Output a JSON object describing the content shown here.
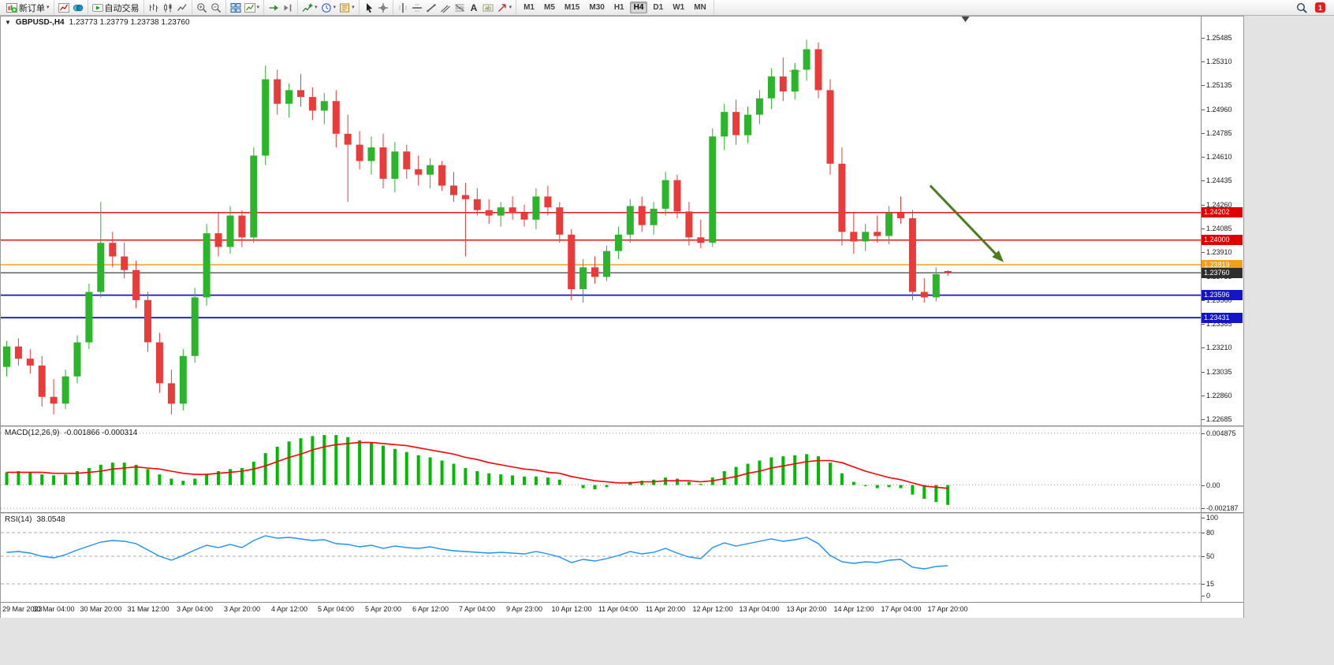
{
  "toolbar": {
    "active_timeframe": "H4",
    "groups": [
      {
        "items": [
          {
            "icon": "new-order",
            "label": "新订单",
            "caret": true,
            "name": "new-order-button"
          }
        ]
      },
      {
        "items": [
          {
            "icon": "chart-window",
            "name": "charts-button"
          },
          {
            "icon": "profile",
            "name": "profiles-button"
          }
        ]
      },
      {
        "items": [
          {
            "icon": "autotrading",
            "label": "自动交易",
            "name": "autotrading-button"
          }
        ]
      },
      {
        "items": [
          {
            "icon": "bar-chart",
            "name": "bar-chart-button"
          },
          {
            "icon": "candle-chart",
            "name": "candlestick-chart-button"
          },
          {
            "icon": "line-chart",
            "name": "line-chart-button"
          }
        ]
      },
      {
        "items": [
          {
            "icon": "zoom-in",
            "name": "zoom-in-button"
          },
          {
            "icon": "zoom-out",
            "name": "zoom-out-button"
          }
        ]
      },
      {
        "items": [
          {
            "icon": "tile-windows",
            "name": "tile-windows-button"
          },
          {
            "icon": "new-chart",
            "caret": true,
            "name": "new-chart-button"
          }
        ]
      },
      {
        "items": [
          {
            "icon": "auto-scroll",
            "name": "auto-scroll-button"
          },
          {
            "icon": "chart-shift",
            "name": "chart-shift-button"
          }
        ]
      },
      {
        "items": [
          {
            "icon": "indicators",
            "caret": true,
            "name": "indicators-button"
          },
          {
            "icon": "periods",
            "caret": true,
            "name": "periods-button"
          },
          {
            "icon": "templates",
            "caret": true,
            "name": "templates-button"
          }
        ]
      },
      {
        "items": [
          {
            "icon": "cursor",
            "name": "cursor-button"
          },
          {
            "icon": "crosshair",
            "name": "crosshair-button"
          }
        ]
      },
      {
        "items": [
          {
            "icon": "vertical-line",
            "name": "vertical-line-button"
          },
          {
            "icon": "horizontal-line",
            "name": "horizontal-line-button"
          },
          {
            "icon": "trendline",
            "name": "trendline-button"
          },
          {
            "icon": "channel",
            "name": "channel-button"
          },
          {
            "icon": "fibonacci",
            "name": "fibonacci-button"
          },
          {
            "icon": "text",
            "name": "text-button"
          },
          {
            "icon": "text-label",
            "name": "text-label-button"
          },
          {
            "icon": "arrows",
            "caret": true,
            "name": "arrows-button"
          }
        ]
      },
      {
        "items": [
          {
            "tf": "M1"
          },
          {
            "tf": "M5"
          },
          {
            "tf": "M15"
          },
          {
            "tf": "M30"
          },
          {
            "tf": "H1"
          },
          {
            "tf": "H4"
          },
          {
            "tf": "D1"
          },
          {
            "tf": "W1"
          },
          {
            "tf": "MN"
          }
        ]
      }
    ],
    "right": {
      "badge": "1"
    }
  },
  "chart": {
    "symbol_period": "GBPUSD-,H4",
    "ohlc_readout": "1.23773 1.23779 1.23738 1.23760"
  },
  "chart_data": {
    "type": "candlestick",
    "symbol": "GBPUSD-",
    "timeframe": "H4",
    "ohlc": {
      "open": 1.23773,
      "high": 1.23779,
      "low": 1.23738,
      "close": 1.2376
    },
    "price_range": [
      1.2264,
      1.2564
    ],
    "right_padding_slots": 21,
    "label_step": 4,
    "colors": {
      "bull": "#2ab52a",
      "bear": "#ea3b3b",
      "background": "#ffffff"
    },
    "price_ticks": [
      "1.25485",
      "1.25310",
      "1.25135",
      "1.24960",
      "1.24785",
      "1.24610",
      "1.24435",
      "1.24260",
      "1.24085",
      "1.23910",
      "1.23735",
      "1.23560",
      "1.23385",
      "1.23210",
      "1.23035",
      "1.22860",
      "1.22685"
    ],
    "hlines": [
      {
        "price": 1.24202,
        "tag": "1.24202",
        "color": "#e00000",
        "width": 1.3
      },
      {
        "price": 1.24,
        "tag": "1.24000",
        "color": "#e00000",
        "width": 1.3
      },
      {
        "price": 1.23819,
        "tag": "1.23819",
        "color": "#f0a01e",
        "width": 1.6
      },
      {
        "price": 1.2376,
        "tag": "1.23760",
        "color": "#2e2e2e",
        "width": 1.1
      },
      {
        "price": 1.23596,
        "tag": "1.23596",
        "color": "#1414c8",
        "width": 1.8
      },
      {
        "price": 1.23431,
        "tag": "1.23431",
        "color": "#1414c8",
        "width": 1.8
      }
    ],
    "arrow": {
      "from_slot": 78.5,
      "from_price": 1.244,
      "to_slot": 84.5,
      "to_price": 1.2386,
      "color": "#4a7d1e",
      "width": 3
    },
    "marker": {
      "slot": 67,
      "price": 1.2524,
      "color": "#3aa32a"
    },
    "time_labels": [
      "29 Mar 2023",
      "30 Mar 04:00",
      "30 Mar 20:00",
      "31 Mar 12:00",
      "3 Apr 04:00",
      "3 Apr 20:00",
      "4 Apr 12:00",
      "5 Apr 04:00",
      "5 Apr 20:00",
      "6 Apr 12:00",
      "7 Apr 04:00",
      "9 Apr 23:00",
      "10 Apr 12:00",
      "11 Apr 04:00",
      "11 Apr 20:00",
      "12 Apr 12:00",
      "13 Apr 04:00",
      "13 Apr 20:00",
      "14 Apr 12:00",
      "17 Apr 04:00",
      "17 Apr 20:00"
    ],
    "candles": [
      [
        1.2307,
        1.2326,
        1.23,
        1.2322
      ],
      [
        1.2322,
        1.2328,
        1.2308,
        1.2313
      ],
      [
        1.2313,
        1.232,
        1.2302,
        1.2308
      ],
      [
        1.2308,
        1.2315,
        1.2278,
        1.2285
      ],
      [
        1.2285,
        1.2298,
        1.2272,
        1.228
      ],
      [
        1.228,
        1.2305,
        1.2276,
        1.23
      ],
      [
        1.23,
        1.233,
        1.2295,
        1.2325
      ],
      [
        1.2325,
        1.2368,
        1.232,
        1.2362
      ],
      [
        1.2362,
        1.2428,
        1.2358,
        1.2398
      ],
      [
        1.2398,
        1.2406,
        1.238,
        1.2388
      ],
      [
        1.2388,
        1.2398,
        1.2372,
        1.2378
      ],
      [
        1.2378,
        1.2385,
        1.235,
        1.2356
      ],
      [
        1.2356,
        1.2362,
        1.2318,
        1.2325
      ],
      [
        1.2325,
        1.2332,
        1.2288,
        1.2295
      ],
      [
        1.2295,
        1.2305,
        1.2272,
        1.228
      ],
      [
        1.228,
        1.232,
        1.2275,
        1.2315
      ],
      [
        1.2315,
        1.2365,
        1.231,
        1.2358
      ],
      [
        1.2358,
        1.2412,
        1.2352,
        1.2405
      ],
      [
        1.2405,
        1.242,
        1.2388,
        1.2395
      ],
      [
        1.2395,
        1.2425,
        1.239,
        1.2418
      ],
      [
        1.2418,
        1.2422,
        1.2395,
        1.2402
      ],
      [
        1.2402,
        1.2468,
        1.2398,
        1.2462
      ],
      [
        1.2462,
        1.2528,
        1.2455,
        1.2518
      ],
      [
        1.2518,
        1.2525,
        1.2492,
        1.25
      ],
      [
        1.25,
        1.2515,
        1.249,
        1.251
      ],
      [
        1.251,
        1.2522,
        1.2498,
        1.2505
      ],
      [
        1.2505,
        1.2512,
        1.2488,
        1.2495
      ],
      [
        1.2495,
        1.2508,
        1.2485,
        1.2502
      ],
      [
        1.2502,
        1.251,
        1.2468,
        1.2478
      ],
      [
        1.2478,
        1.2492,
        1.2428,
        1.247
      ],
      [
        1.247,
        1.248,
        1.2452,
        1.2458
      ],
      [
        1.2458,
        1.2476,
        1.2448,
        1.2468
      ],
      [
        1.2468,
        1.2478,
        1.2438,
        1.2445
      ],
      [
        1.2445,
        1.2472,
        1.2435,
        1.2465
      ],
      [
        1.2465,
        1.247,
        1.2445,
        1.2452
      ],
      [
        1.2452,
        1.2462,
        1.244,
        1.2448
      ],
      [
        1.2448,
        1.246,
        1.2438,
        1.2455
      ],
      [
        1.2455,
        1.2458,
        1.2436,
        1.244
      ],
      [
        1.244,
        1.245,
        1.2428,
        1.2433
      ],
      [
        1.2433,
        1.2442,
        1.2388,
        1.243
      ],
      [
        1.243,
        1.2438,
        1.2418,
        1.2422
      ],
      [
        1.2422,
        1.243,
        1.2412,
        1.2418
      ],
      [
        1.2418,
        1.2428,
        1.241,
        1.2424
      ],
      [
        1.2424,
        1.2432,
        1.2415,
        1.242
      ],
      [
        1.242,
        1.2426,
        1.241,
        1.2415
      ],
      [
        1.2415,
        1.2438,
        1.2408,
        1.2432
      ],
      [
        1.2432,
        1.244,
        1.2418,
        1.2424
      ],
      [
        1.2424,
        1.2428,
        1.2398,
        1.2404
      ],
      [
        1.2404,
        1.2408,
        1.2356,
        1.2364
      ],
      [
        1.2364,
        1.2386,
        1.2354,
        1.238
      ],
      [
        1.238,
        1.2388,
        1.2368,
        1.2373
      ],
      [
        1.2373,
        1.2396,
        1.237,
        1.2392
      ],
      [
        1.2392,
        1.241,
        1.2386,
        1.2404
      ],
      [
        1.2404,
        1.243,
        1.2398,
        1.2425
      ],
      [
        1.2425,
        1.2432,
        1.2406,
        1.2411
      ],
      [
        1.2411,
        1.2428,
        1.2404,
        1.2423
      ],
      [
        1.2423,
        1.245,
        1.2418,
        1.2444
      ],
      [
        1.2444,
        1.2448,
        1.2416,
        1.2421
      ],
      [
        1.2421,
        1.2428,
        1.2396,
        1.2402
      ],
      [
        1.2402,
        1.2415,
        1.2394,
        1.2398
      ],
      [
        1.2398,
        1.2482,
        1.2395,
        1.2476
      ],
      [
        1.2476,
        1.25,
        1.2466,
        1.2494
      ],
      [
        1.2494,
        1.2503,
        1.247,
        1.2477
      ],
      [
        1.2477,
        1.2498,
        1.2471,
        1.2492
      ],
      [
        1.2492,
        1.251,
        1.2485,
        1.2504
      ],
      [
        1.2504,
        1.2526,
        1.2496,
        1.252
      ],
      [
        1.252,
        1.2534,
        1.2502,
        1.2509
      ],
      [
        1.2509,
        1.253,
        1.2503,
        1.2525
      ],
      [
        1.2525,
        1.2547,
        1.2517,
        1.254
      ],
      [
        1.254,
        1.2545,
        1.2504,
        1.251
      ],
      [
        1.251,
        1.2518,
        1.2448,
        1.2456
      ],
      [
        1.2456,
        1.2468,
        1.2396,
        1.2406
      ],
      [
        1.2406,
        1.242,
        1.239,
        1.2399
      ],
      [
        1.2399,
        1.2412,
        1.2392,
        1.2406
      ],
      [
        1.2406,
        1.2418,
        1.2398,
        1.2403
      ],
      [
        1.2403,
        1.2425,
        1.2397,
        1.242
      ],
      [
        1.242,
        1.2432,
        1.2412,
        1.2416
      ],
      [
        1.2416,
        1.2422,
        1.2356,
        1.2362
      ],
      [
        1.2362,
        1.2372,
        1.2354,
        1.2358
      ],
      [
        1.2358,
        1.238,
        1.2355,
        1.2375
      ],
      [
        1.23773,
        1.23779,
        1.23738,
        1.2376
      ]
    ],
    "macd": {
      "label": "MACD(12,26,9)",
      "values_label": "-0.001866 -0.000314",
      "main_value": -0.001866,
      "signal_value": -0.000314,
      "range": [
        -0.00255,
        0.00545
      ],
      "hist_color": "#00bb00",
      "signal_color": "#ff0000",
      "ticks": [
        {
          "v": 0.004875,
          "text": "0.004875"
        },
        {
          "v": 0,
          "text": "0.00"
        },
        {
          "v": -0.002187,
          "text": "-0.002187"
        }
      ],
      "hist": [
        0.0012,
        0.0013,
        0.0012,
        0.001,
        0.0009,
        0.001,
        0.0013,
        0.0016,
        0.0019,
        0.0021,
        0.0021,
        0.0019,
        0.0015,
        0.001,
        0.0006,
        0.0004,
        0.0006,
        0.001,
        0.0013,
        0.0015,
        0.0016,
        0.0022,
        0.003,
        0.0036,
        0.0041,
        0.0044,
        0.0046,
        0.0047,
        0.0047,
        0.0045,
        0.0042,
        0.004,
        0.0037,
        0.0034,
        0.0031,
        0.0028,
        0.0026,
        0.0023,
        0.002,
        0.0016,
        0.0013,
        0.0011,
        0.001,
        0.0009,
        0.0008,
        0.0008,
        0.0007,
        0.0005,
        0.0,
        -0.0003,
        -0.0004,
        -0.0002,
        0.0,
        0.0003,
        0.0004,
        0.0005,
        0.0007,
        0.0006,
        0.0003,
        0.0001,
        0.0007,
        0.0013,
        0.0017,
        0.002,
        0.0023,
        0.0026,
        0.0027,
        0.0028,
        0.0029,
        0.0027,
        0.0021,
        0.0011,
        0.0003,
        -0.0001,
        -0.0003,
        -0.0002,
        -0.0003,
        -0.0009,
        -0.0013,
        -0.0016,
        -0.001866
      ],
      "signal": [
        0.0012,
        0.0012,
        0.0012,
        0.0012,
        0.0011,
        0.0011,
        0.0011,
        0.0012,
        0.0013,
        0.0015,
        0.0016,
        0.0017,
        0.0016,
        0.0015,
        0.0013,
        0.0011,
        0.001,
        0.001,
        0.0011,
        0.0012,
        0.0013,
        0.0015,
        0.0018,
        0.0022,
        0.0026,
        0.0029,
        0.0033,
        0.0036,
        0.0038,
        0.0039,
        0.004,
        0.004,
        0.0039,
        0.0038,
        0.0037,
        0.0035,
        0.0033,
        0.0031,
        0.0029,
        0.0026,
        0.0024,
        0.0021,
        0.0019,
        0.0017,
        0.0015,
        0.0014,
        0.0012,
        0.0011,
        0.0008,
        0.0006,
        0.0004,
        0.0003,
        0.0002,
        0.0002,
        0.0003,
        0.0003,
        0.0004,
        0.0004,
        0.0004,
        0.0003,
        0.0004,
        0.0006,
        0.0008,
        0.0011,
        0.0013,
        0.0016,
        0.0018,
        0.002,
        0.0022,
        0.0023,
        0.0023,
        0.0021,
        0.0017,
        0.0013,
        0.001,
        0.0007,
        0.0005,
        0.0002,
        -0.0001,
        -0.0002,
        -0.000314
      ]
    },
    "rsi": {
      "label": "RSI(14)",
      "value_label": "38.0548",
      "current_value": 38.0548,
      "range": [
        0,
        100
      ],
      "color": "#1e90ff",
      "levels": [
        80,
        50,
        15
      ],
      "ticks": [
        {
          "v": 100,
          "text": "100"
        },
        {
          "v": 80,
          "text": "80"
        },
        {
          "v": 50,
          "text": "50"
        },
        {
          "v": 15,
          "text": "15"
        },
        {
          "v": 0,
          "text": "0"
        }
      ],
      "values": [
        55,
        56,
        54,
        50,
        48,
        52,
        58,
        63,
        68,
        70,
        69,
        66,
        58,
        50,
        45,
        51,
        58,
        64,
        61,
        65,
        61,
        70,
        76,
        73,
        74,
        72,
        70,
        71,
        66,
        65,
        62,
        64,
        60,
        63,
        61,
        60,
        62,
        59,
        57,
        56,
        55,
        54,
        55,
        54,
        53,
        56,
        53,
        49,
        42,
        46,
        44,
        47,
        51,
        56,
        53,
        55,
        60,
        54,
        49,
        47,
        61,
        67,
        63,
        66,
        69,
        72,
        69,
        71,
        74,
        66,
        51,
        43,
        41,
        43,
        42,
        45,
        46,
        36,
        34,
        37,
        38.0548
      ]
    }
  }
}
